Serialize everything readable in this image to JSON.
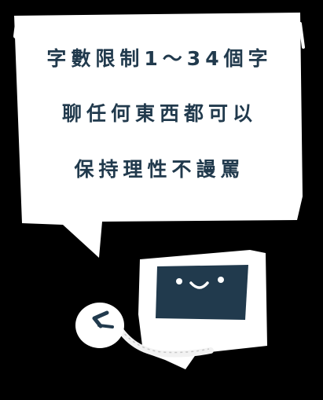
{
  "bubble": {
    "lines": [
      "字數限制1～34個字",
      "聊任何東西都可以",
      "保持理性不謾罵"
    ]
  },
  "colors": {
    "background": "#000000",
    "bubble_fill": "#ffffff",
    "ink": "#213a4d",
    "sticker_edge": "#f2f2f2"
  },
  "icons": {
    "speech_bubble": "speech-bubble-icon",
    "computer": "computer-icon",
    "mouse": "mouse-icon"
  }
}
